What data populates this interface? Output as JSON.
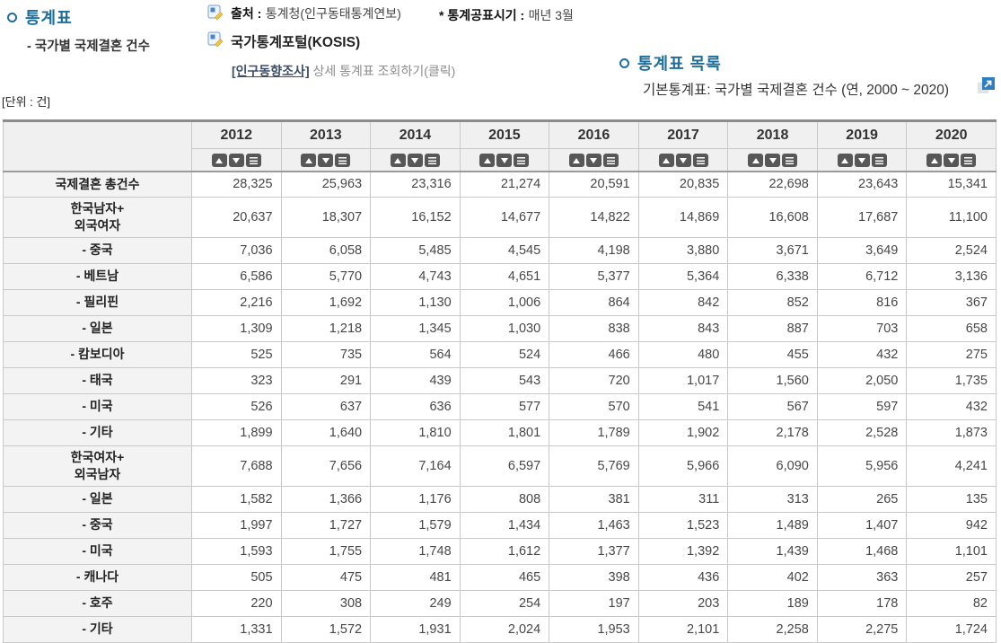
{
  "page": {
    "title": "통계표",
    "subtitle": "- 국가별 국제결혼 건수",
    "source_label": "출처 :",
    "source_value": "통계청(인구동태통계연보)",
    "publish_label": "* 통계공표시기 :",
    "publish_value": "매년 3월",
    "kosis_label": "국가통계포털(KOSIS)",
    "survey_link": "[인구동향조사]",
    "survey_link_suffix": " 상세 통계표 조회하기(클릭)",
    "list_title": "통계표 목록",
    "list_item": "기본통계표: 국가별 국제결혼 건수 (연, 2000 ~ 2020)",
    "unit": "[단위 : 건]"
  },
  "icons": {
    "source_icon": "document-pencil",
    "kosis_icon": "document-pencil",
    "external_link_icon": "open-in-new-window",
    "sort_icons": [
      "sort-ascending",
      "sort-descending",
      "column-menu"
    ]
  },
  "colors": {
    "accent_blue": "#1d6f9e",
    "link_navy": "#3d4d6b",
    "muted_gray": "#8d8d8d",
    "icon_blue": "#2e7fc1",
    "sort_button_gray": "#575757",
    "header_bg": "#f0f0f0",
    "label_bg": "#f3f3f3",
    "border_gray": "#c9c9c9"
  },
  "table": {
    "years": [
      "2012",
      "2013",
      "2014",
      "2015",
      "2016",
      "2017",
      "2018",
      "2019",
      "2020"
    ],
    "rows": [
      {
        "label": "국제결혼 총건수",
        "values": [
          "28,325",
          "25,963",
          "23,316",
          "21,274",
          "20,591",
          "20,835",
          "22,698",
          "23,643",
          "15,341"
        ]
      },
      {
        "label": "한국남자+\n외국여자",
        "values": [
          "20,637",
          "18,307",
          "16,152",
          "14,677",
          "14,822",
          "14,869",
          "16,608",
          "17,687",
          "11,100"
        ]
      },
      {
        "label": "- 중국",
        "values": [
          "7,036",
          "6,058",
          "5,485",
          "4,545",
          "4,198",
          "3,880",
          "3,671",
          "3,649",
          "2,524"
        ]
      },
      {
        "label": "- 베트남",
        "values": [
          "6,586",
          "5,770",
          "4,743",
          "4,651",
          "5,377",
          "5,364",
          "6,338",
          "6,712",
          "3,136"
        ]
      },
      {
        "label": "- 필리핀",
        "values": [
          "2,216",
          "1,692",
          "1,130",
          "1,006",
          "864",
          "842",
          "852",
          "816",
          "367"
        ]
      },
      {
        "label": "- 일본",
        "values": [
          "1,309",
          "1,218",
          "1,345",
          "1,030",
          "838",
          "843",
          "887",
          "703",
          "658"
        ]
      },
      {
        "label": "- 캄보디아",
        "values": [
          "525",
          "735",
          "564",
          "524",
          "466",
          "480",
          "455",
          "432",
          "275"
        ]
      },
      {
        "label": "- 태국",
        "values": [
          "323",
          "291",
          "439",
          "543",
          "720",
          "1,017",
          "1,560",
          "2,050",
          "1,735"
        ]
      },
      {
        "label": "- 미국",
        "values": [
          "526",
          "637",
          "636",
          "577",
          "570",
          "541",
          "567",
          "597",
          "432"
        ]
      },
      {
        "label": "- 기타",
        "values": [
          "1,899",
          "1,640",
          "1,810",
          "1,801",
          "1,789",
          "1,902",
          "2,178",
          "2,528",
          "1,873"
        ]
      },
      {
        "label": "한국여자+\n외국남자",
        "values": [
          "7,688",
          "7,656",
          "7,164",
          "6,597",
          "5,769",
          "5,966",
          "6,090",
          "5,956",
          "4,241"
        ]
      },
      {
        "label": "- 일본",
        "values": [
          "1,582",
          "1,366",
          "1,176",
          "808",
          "381",
          "311",
          "313",
          "265",
          "135"
        ]
      },
      {
        "label": "- 중국",
        "values": [
          "1,997",
          "1,727",
          "1,579",
          "1,434",
          "1,463",
          "1,523",
          "1,489",
          "1,407",
          "942"
        ]
      },
      {
        "label": "- 미국",
        "values": [
          "1,593",
          "1,755",
          "1,748",
          "1,612",
          "1,377",
          "1,392",
          "1,439",
          "1,468",
          "1,101"
        ]
      },
      {
        "label": "- 캐나다",
        "values": [
          "505",
          "475",
          "481",
          "465",
          "398",
          "436",
          "402",
          "363",
          "257"
        ]
      },
      {
        "label": "- 호주",
        "values": [
          "220",
          "308",
          "249",
          "254",
          "197",
          "203",
          "189",
          "178",
          "82"
        ]
      },
      {
        "label": "- 기타",
        "values": [
          "1,331",
          "1,572",
          "1,931",
          "2,024",
          "1,953",
          "2,101",
          "2,258",
          "2,275",
          "1,724"
        ]
      }
    ]
  }
}
